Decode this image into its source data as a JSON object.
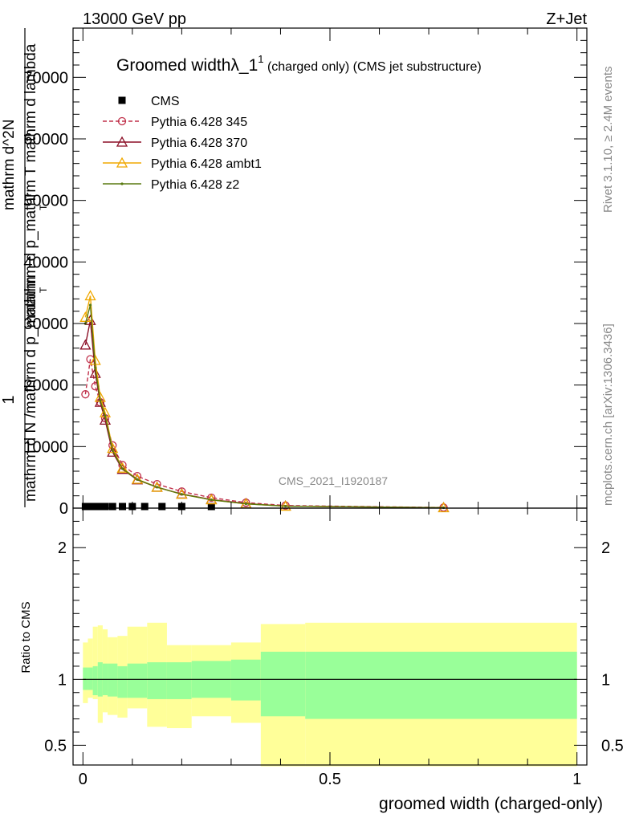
{
  "header": {
    "left": "13000 GeV pp",
    "right": "Z+Jet"
  },
  "side": {
    "rivet": "Rivet 3.1.10, ≥ 2.4M events",
    "mcplots": "mcplots.cern.ch [arXiv:1306.3436]"
  },
  "main": {
    "title_main": "Groomed widthλ_1",
    "title_sup": "1",
    "title_sub": " (charged only) (CMS jet substructure)",
    "analysis_id": "CMS_2021_I1920187",
    "ylabel_parts": [
      "1",
      "mathrm d N /mathrm d p_mathrm",
      "mathrm d^2N",
      "mathrm d p_mathrm T mathrm d lambda",
      "T",
      "T"
    ]
  },
  "ratio": {
    "ylabel": "Ratio to CMS"
  },
  "chart_data": [
    {
      "type": "line",
      "panel": "main",
      "xlabel": "groomed width (charged-only)",
      "xlim": [
        -0.02,
        1.02
      ],
      "ylim": [
        0,
        78000
      ],
      "y_ticks": [
        0,
        10000,
        20000,
        30000,
        40000,
        50000,
        60000,
        70000
      ],
      "y_tick_labels": [
        "0",
        "10000",
        "20000",
        "30000",
        "40000",
        "50000",
        "60000",
        "70000"
      ],
      "x_ticks": [
        0,
        0.5,
        1
      ],
      "legend_position": "top-left",
      "series": [
        {
          "name": "CMS",
          "color": "#000000",
          "marker": "square",
          "x": [
            0.005,
            0.015,
            0.025,
            0.035,
            0.045,
            0.06,
            0.08,
            0.1,
            0.125,
            0.16,
            0.2,
            0.26
          ],
          "y": [
            0,
            0,
            0,
            0,
            0,
            0,
            0,
            0,
            0,
            0,
            0,
            0
          ]
        },
        {
          "name": "Pythia 6.428 345",
          "color": "#c0304a",
          "marker": "circle",
          "dashed": true,
          "x": [
            0.005,
            0.015,
            0.025,
            0.035,
            0.045,
            0.06,
            0.08,
            0.11,
            0.15,
            0.2,
            0.26,
            0.33,
            0.41,
            0.73
          ],
          "y": [
            18500,
            24200,
            19800,
            17200,
            14600,
            10200,
            7000,
            5200,
            3900,
            2700,
            1700,
            900,
            420,
            100
          ]
        },
        {
          "name": "Pythia 6.428 370",
          "color": "#8b0f26",
          "marker": "triangle",
          "dashed": false,
          "x": [
            0.005,
            0.015,
            0.025,
            0.035,
            0.045,
            0.06,
            0.08,
            0.11,
            0.15,
            0.2,
            0.26,
            0.33,
            0.41,
            0.73
          ],
          "y": [
            26500,
            30500,
            21900,
            17200,
            14300,
            9100,
            6300,
            4600,
            3400,
            2300,
            1400,
            750,
            340,
            80
          ]
        },
        {
          "name": "Pythia 6.428 ambt1",
          "color": "#f0a800",
          "marker": "triangle",
          "dashed": false,
          "x": [
            0.005,
            0.015,
            0.025,
            0.035,
            0.045,
            0.06,
            0.08,
            0.11,
            0.15,
            0.2,
            0.26,
            0.33,
            0.41,
            0.73
          ],
          "y": [
            31000,
            34500,
            24000,
            18000,
            15500,
            9700,
            6500,
            4700,
            3400,
            2250,
            1350,
            700,
            320,
            70
          ]
        },
        {
          "name": "Pythia 6.428 z2",
          "color": "#5a7a10",
          "marker": "dot",
          "dashed": false,
          "x": [
            0.005,
            0.015,
            0.025,
            0.035,
            0.045,
            0.06,
            0.08,
            0.11,
            0.15,
            0.2,
            0.26,
            0.33,
            0.41,
            0.73
          ],
          "y": [
            30000,
            33000,
            22800,
            17500,
            15000,
            9400,
            6400,
            4650,
            3400,
            2250,
            1350,
            700,
            320,
            70
          ]
        }
      ]
    },
    {
      "type": "area",
      "panel": "ratio",
      "ylabel": "Ratio to CMS",
      "xlabel": "groomed width (charged-only)",
      "xlim": [
        -0.02,
        1.02
      ],
      "ylim": [
        0.35,
        2.3
      ],
      "y_ticks": [
        0.5,
        1,
        2
      ],
      "y_tick_labels": [
        "0.5",
        "1",
        "2"
      ],
      "x_ticks": [
        0,
        0.5,
        1
      ],
      "x_tick_labels": [
        "0",
        "0.5",
        "1"
      ],
      "reference": 1,
      "bin_edges": [
        0,
        0.01,
        0.02,
        0.03,
        0.04,
        0.05,
        0.07,
        0.09,
        0.13,
        0.17,
        0.22,
        0.3,
        0.36,
        0.45,
        1.0
      ],
      "stat_band": {
        "color": "#99ff99",
        "low": [
          0.92,
          0.92,
          0.88,
          0.87,
          0.88,
          0.87,
          0.86,
          0.86,
          0.85,
          0.85,
          0.86,
          0.84,
          0.72,
          0.7
        ],
        "high": [
          1.09,
          1.09,
          1.1,
          1.13,
          1.12,
          1.12,
          1.1,
          1.12,
          1.13,
          1.13,
          1.14,
          1.15,
          1.21,
          1.21
        ]
      },
      "syst_band": {
        "color": "#ffff99",
        "low": [
          0.82,
          0.86,
          0.85,
          0.67,
          0.75,
          0.73,
          0.71,
          0.78,
          0.64,
          0.63,
          0.72,
          0.67,
          0.34,
          0.34
        ],
        "high": [
          1.28,
          1.31,
          1.4,
          1.41,
          1.38,
          1.32,
          1.33,
          1.4,
          1.43,
          1.26,
          1.26,
          1.28,
          1.42,
          1.43
        ]
      }
    }
  ]
}
